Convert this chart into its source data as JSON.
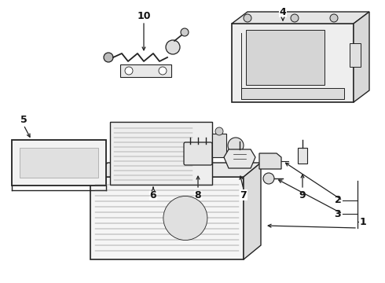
{
  "background_color": "#ffffff",
  "line_color": "#222222",
  "figsize": [
    4.9,
    3.6
  ],
  "dpi": 100,
  "xlim": [
    0,
    490
  ],
  "ylim": [
    0,
    360
  ]
}
